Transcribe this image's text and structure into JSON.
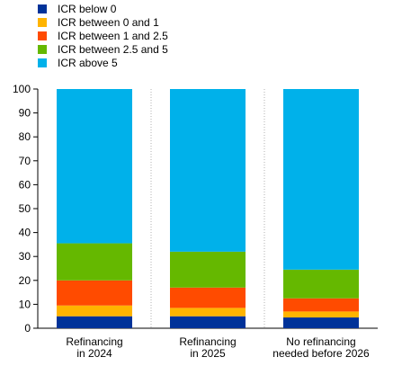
{
  "chart_data": {
    "type": "bar",
    "stacked": true,
    "categories": [
      [
        "Refinancing",
        "in 2024"
      ],
      [
        "Refinancing",
        "in 2025"
      ],
      [
        "No refinancing",
        "needed before 2026"
      ]
    ],
    "series": [
      {
        "name": "ICR below 0",
        "color": "#003299",
        "values": [
          5,
          5,
          4.5
        ]
      },
      {
        "name": "ICR between 0 and 1",
        "color": "#FFB400",
        "values": [
          4.5,
          3.5,
          2.5
        ]
      },
      {
        "name": "ICR between 1 and 2.5",
        "color": "#FF4B00",
        "values": [
          10.5,
          8.5,
          5.5
        ]
      },
      {
        "name": "ICR between 2.5 and 5",
        "color": "#65B800",
        "values": [
          15.5,
          15,
          12
        ]
      },
      {
        "name": "ICR above 5",
        "color": "#00B1EA",
        "values": [
          64.5,
          68,
          75.5
        ]
      }
    ],
    "ylim": [
      0,
      100
    ],
    "yticks": [
      0,
      10,
      20,
      30,
      40,
      50,
      60,
      70,
      80,
      90,
      100
    ],
    "grid": "vertical dotted separators between categories",
    "legend": "top-left",
    "title": "",
    "xlabel": "",
    "ylabel": ""
  }
}
